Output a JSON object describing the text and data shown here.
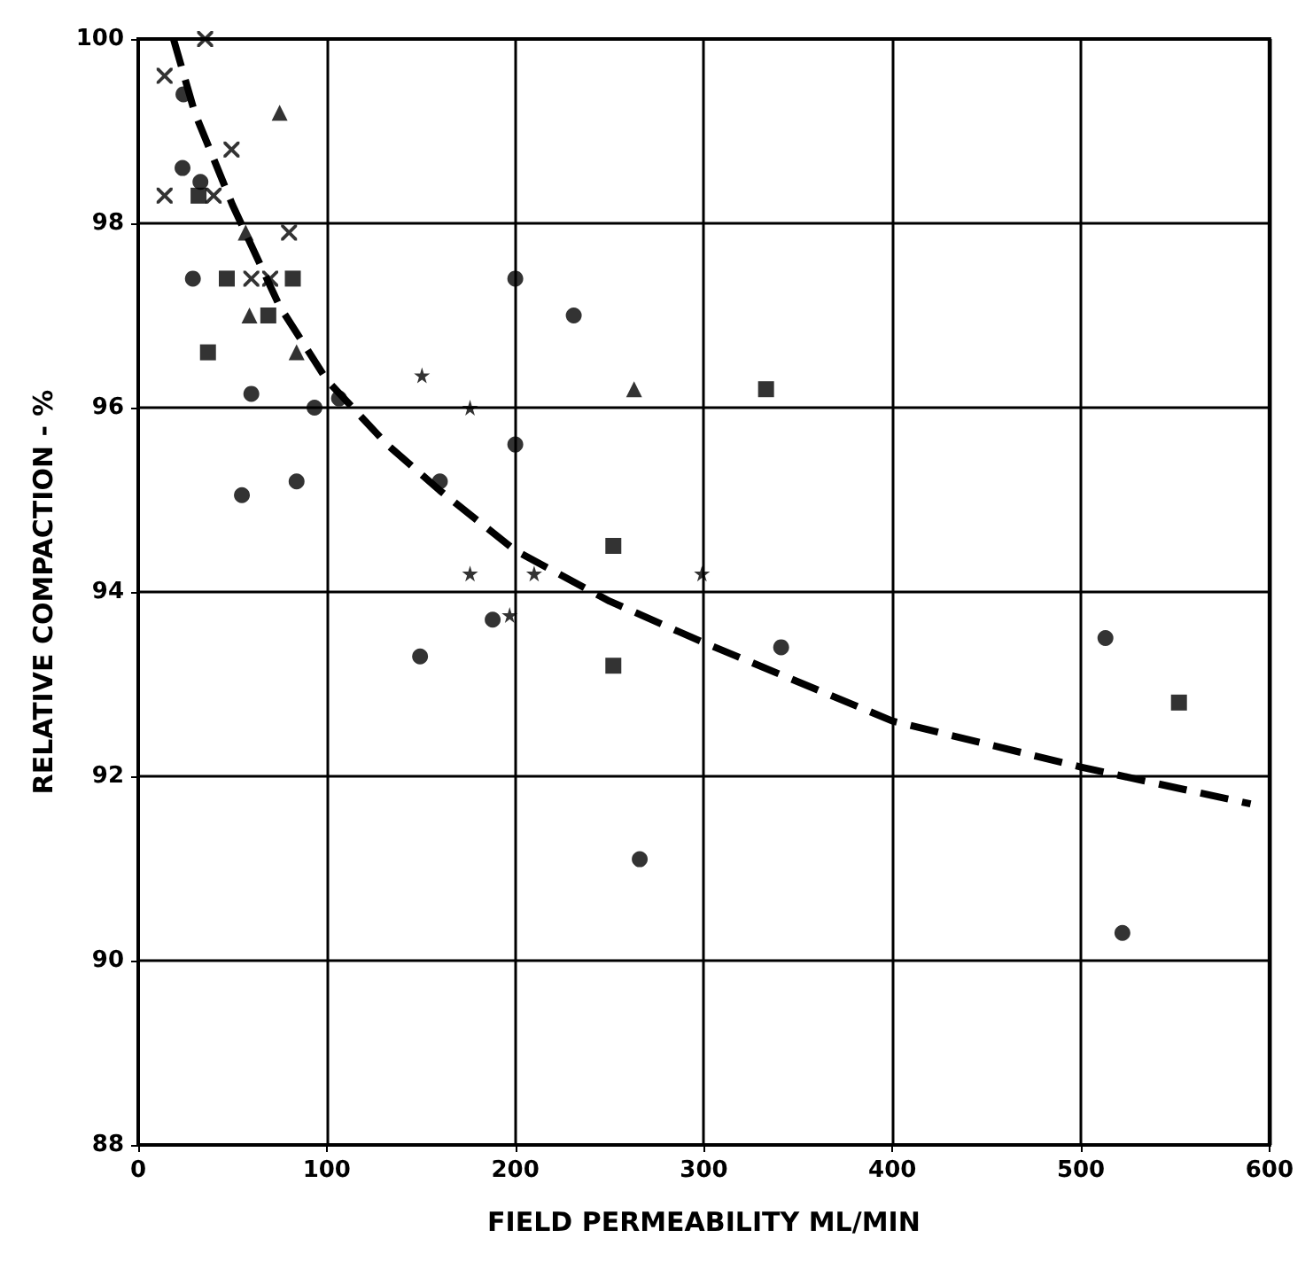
{
  "chart_data": {
    "type": "scatter",
    "xlabel": "FIELD PERMEABILITY ML/MIN",
    "ylabel": "RELATIVE COMPACTION - %",
    "xlim": [
      0,
      600
    ],
    "xticks": [
      0,
      100,
      200,
      300,
      400,
      500,
      600
    ],
    "ylim": [
      88,
      100
    ],
    "yticks": [
      88,
      90,
      92,
      94,
      96,
      98,
      100
    ],
    "grid": true,
    "series": [
      {
        "marker": "cross",
        "color": "#000000",
        "x": [
          14,
          35.5,
          14,
          40,
          49.5,
          80,
          60,
          70
        ],
        "values": [
          99.6,
          100,
          98.3,
          98.3,
          98.8,
          97.9,
          97.4,
          97.4
        ]
      },
      {
        "marker": "circle",
        "color": "#000000",
        "x": [
          24,
          23.5,
          33,
          29,
          60,
          93.5,
          106.5,
          84,
          160,
          200,
          188
        ],
        "values": [
          99.4,
          98.6,
          98.45,
          97.4,
          96.15,
          96.0,
          96.1,
          95.2,
          95.2,
          95.6,
          93.7
        ]
      },
      {
        "marker": "triangle",
        "color": "#000000",
        "x": [
          75,
          57,
          59,
          84,
          263
        ],
        "values": [
          99.2,
          97.9,
          97.0,
          96.6,
          96.2
        ]
      },
      {
        "marker": "square",
        "color": "#000000",
        "x": [
          47,
          82,
          37,
          333
        ],
        "values": [
          97.4,
          97.4,
          96.6,
          96.2
        ]
      },
      {
        "marker": "square",
        "color": "#000000",
        "x": [
          32,
          69,
          252,
          252,
          552
        ],
        "values": [
          98.3,
          97.0,
          94.5,
          93.2,
          92.8
        ]
      },
      {
        "marker": "circle",
        "color": "#000000",
        "x": [
          200,
          231,
          513
        ],
        "values": [
          97.4,
          97.0,
          93.5
        ]
      },
      {
        "marker": "circle",
        "color": "#000000",
        "x": [
          55,
          149.5,
          266,
          341,
          522
        ],
        "values": [
          95.05,
          93.3,
          91.1,
          93.4,
          90.3
        ]
      },
      {
        "marker": "star",
        "color": "#000000",
        "x": [
          150.5,
          176,
          176,
          210,
          197,
          299
        ],
        "values": [
          96.35,
          96.0,
          94.2,
          94.2,
          93.75,
          94.2
        ]
      },
      {
        "type": "line",
        "marker": "none",
        "line_style": "dashed",
        "color": "#000000",
        "x": [
          18.7,
          30,
          50,
          75,
          100,
          132,
          160,
          200,
          250,
          300,
          400,
          500,
          590
        ],
        "values": [
          100,
          99.2,
          98.2,
          97.1,
          96.3,
          95.6,
          95.1,
          94.45,
          93.9,
          93.45,
          92.6,
          92.1,
          91.7
        ]
      }
    ]
  }
}
